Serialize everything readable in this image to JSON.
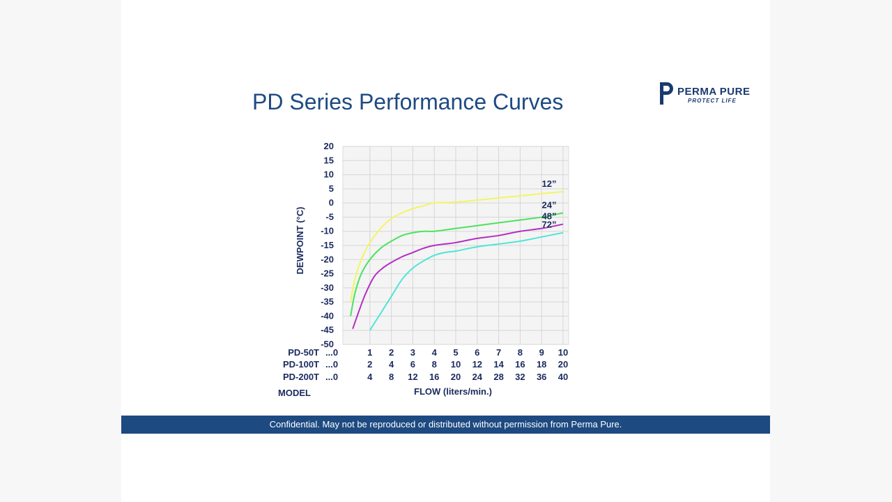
{
  "slide": {
    "title": "PD Series Performance Curves",
    "footer": "Confidential. May not be reproduced or distributed without permission from Perma Pure."
  },
  "logo": {
    "brand": "PERMA PURE",
    "tagline": "PROTECT LIFE",
    "icon": "p-mark-icon"
  },
  "colors": {
    "brand": "#1e4a82",
    "curve_12": "#f4f464",
    "curve_24": "#4ce25e",
    "curve_48": "#b42ec2",
    "curve_72": "#4de6d6"
  },
  "chart_data": {
    "type": "line",
    "ylabel": "DEWPOINT (°C)",
    "xlabel": "FLOW (liters/min.)",
    "model_label": "MODEL",
    "ylim": [
      -50,
      20
    ],
    "xlim": [
      0,
      10
    ],
    "yticks": [
      "20",
      "15",
      "10",
      "5",
      "0",
      "-5",
      "-10",
      "-15",
      "-20",
      "-25",
      "-30",
      "-35",
      "-40",
      "-45",
      "-50"
    ],
    "grid": true,
    "flow_rows": [
      {
        "model": "PD-50T",
        "start": "...0",
        "ticks": [
          "1",
          "2",
          "3",
          "4",
          "5",
          "6",
          "7",
          "8",
          "9",
          "10"
        ]
      },
      {
        "model": "PD-100T",
        "start": "...0",
        "ticks": [
          "2",
          "4",
          "6",
          "8",
          "10",
          "12",
          "14",
          "16",
          "18",
          "20"
        ]
      },
      {
        "model": "PD-200T",
        "start": "...0",
        "ticks": [
          "4",
          "8",
          "12",
          "16",
          "20",
          "24",
          "28",
          "32",
          "36",
          "40"
        ]
      }
    ],
    "series": [
      {
        "name": "12”",
        "x": [
          0.1,
          0.3,
          0.6,
          1,
          1.5,
          2,
          2.5,
          3,
          3.5,
          4,
          5,
          6,
          7,
          8,
          9,
          10
        ],
        "y": [
          -35,
          -27,
          -20,
          -14,
          -9,
          -5.5,
          -3.5,
          -2,
          -1,
          0,
          0.3,
          1,
          1.8,
          2.5,
          3.3,
          4
        ]
      },
      {
        "name": "24”",
        "x": [
          0.1,
          0.3,
          0.6,
          1,
          1.5,
          2,
          2.5,
          3,
          3.5,
          4,
          5,
          6,
          7,
          8,
          9,
          10
        ],
        "y": [
          -40,
          -32,
          -25,
          -20,
          -16,
          -13.5,
          -11.5,
          -10.5,
          -10,
          -10,
          -9,
          -8,
          -7,
          -6,
          -5,
          -3.5
        ]
      },
      {
        "name": "48”",
        "x": [
          0.2,
          0.5,
          0.8,
          1.2,
          1.6,
          2,
          2.5,
          3,
          3.5,
          4,
          5,
          6,
          7,
          8,
          9,
          10
        ],
        "y": [
          -44.5,
          -38,
          -32,
          -26,
          -23,
          -21,
          -19,
          -17.5,
          -16,
          -15,
          -14,
          -12.5,
          -11.5,
          -10,
          -9,
          -7.5
        ]
      },
      {
        "name": "72”",
        "x": [
          1,
          1.5,
          2,
          2.5,
          3,
          3.5,
          4,
          4.5,
          5,
          6,
          7,
          8,
          9,
          10
        ],
        "y": [
          -45,
          -39,
          -33,
          -27,
          -23,
          -20.5,
          -18.5,
          -17.5,
          -17,
          -15.5,
          -14.5,
          -13.5,
          -12,
          -10.5
        ]
      }
    ]
  }
}
